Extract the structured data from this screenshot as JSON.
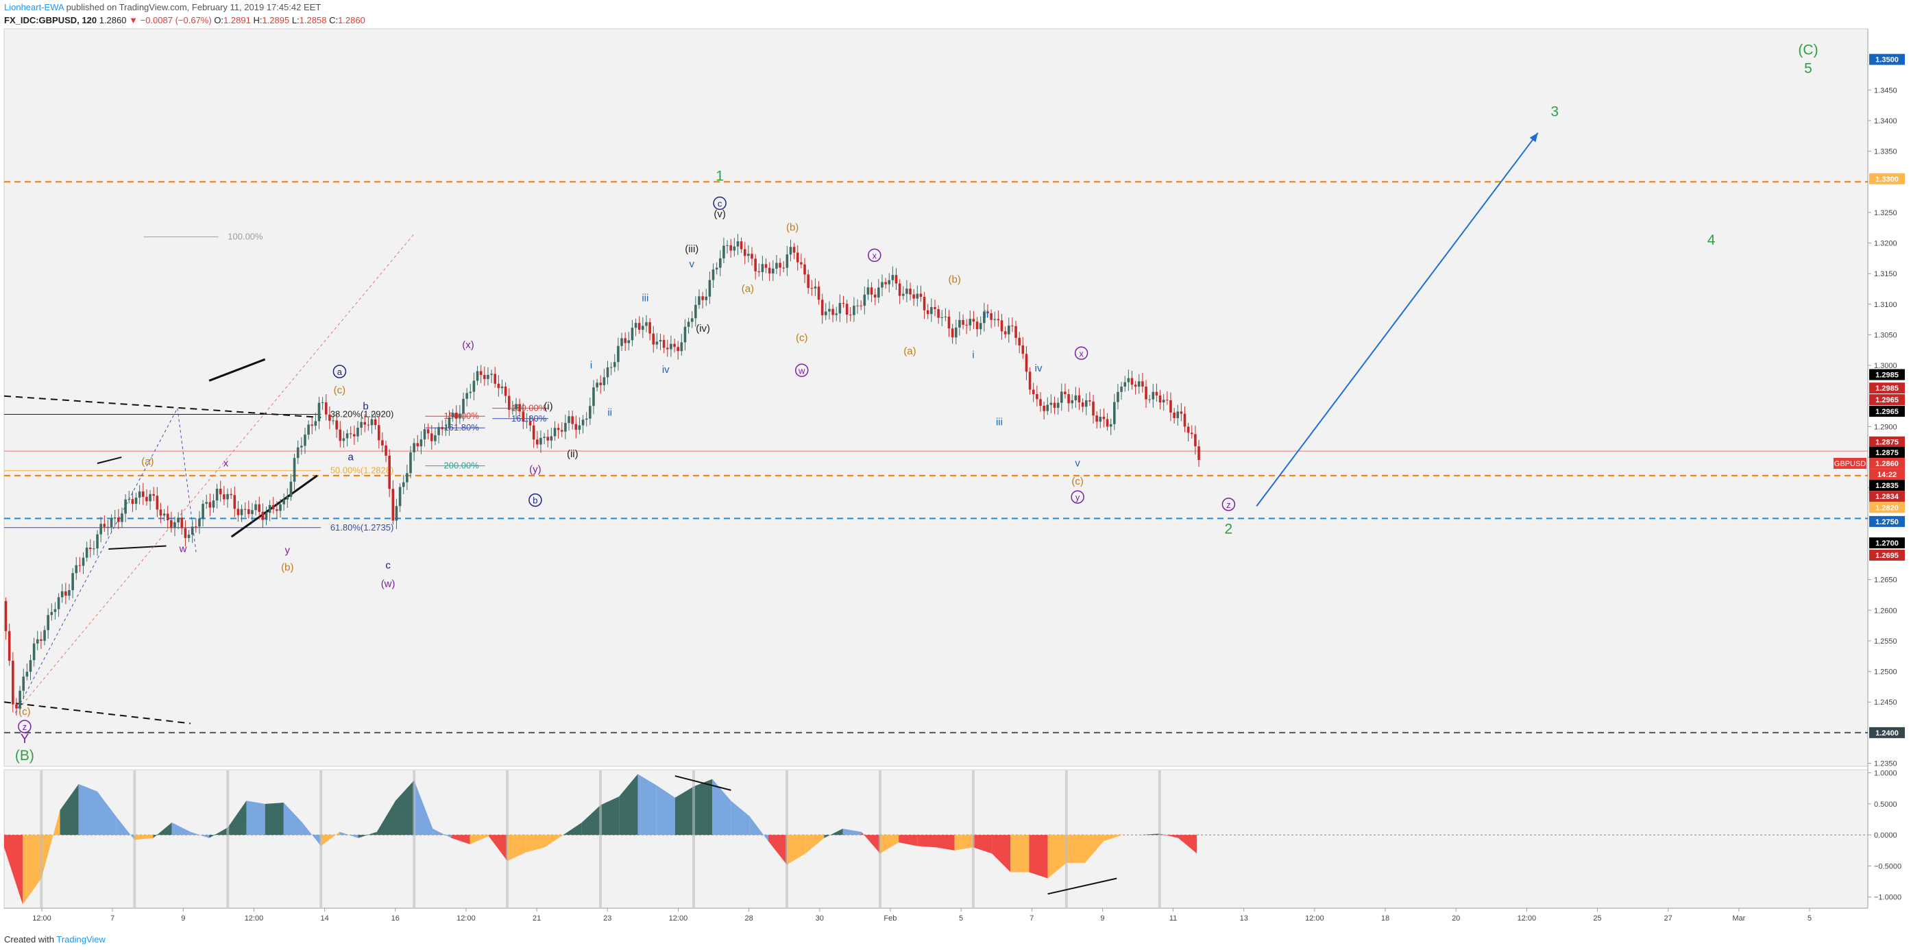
{
  "header": {
    "author": "Lionheart-EWA",
    "published": "published on TradingView.com, February 11, 2019 17:45:42 EET",
    "symbol": "FX_IDC:GBPUSD, 120",
    "last": "1.2860",
    "change": "−0.0087 (−0.67%)",
    "open_label": "O:",
    "open": "1.2891",
    "high_label": "H:",
    "high": "1.2895",
    "low_label": "L:",
    "low": "1.2858",
    "close_label": "C:",
    "close": "1.2860"
  },
  "footer": {
    "created": "Created with",
    "brand": "TradingView"
  },
  "colors": {
    "up": "#3d6b63",
    "down": "#c62828",
    "bg": "#f2f2f2",
    "green": "#2ea043",
    "blue": "#1565c0",
    "purple": "#7b1fa2",
    "orange": "#c07a16",
    "navy": "#1a237e",
    "osc_up_strong": "#3d6b63",
    "osc_up_weak": "#7aa7e0",
    "osc_down_strong": "#f04747",
    "osc_down_weak": "#ffb74d"
  },
  "chart_data": [
    {
      "type": "candlestick",
      "symbol": "GBPUSD",
      "timeframe": "120",
      "ylim": [
        1.2345,
        1.355
      ],
      "y_ticks": [
        "1.3450",
        "1.3400",
        "1.3350",
        "1.3250",
        "1.3200",
        "1.3150",
        "1.3100",
        "1.3050",
        "1.3000",
        "1.2900",
        "1.2850",
        "1.2800",
        "1.2650",
        "1.2600",
        "1.2550",
        "1.2500",
        "1.2450",
        "1.2350"
      ],
      "x_ticks": [
        "12:00",
        "7",
        "9",
        "12:00",
        "14",
        "16",
        "12:00",
        "21",
        "23",
        "12:00",
        "28",
        "30",
        "Feb",
        "5",
        "7",
        "9",
        "11",
        "13",
        "12:00",
        "18",
        "20",
        "12:00",
        "25",
        "27",
        "Mar",
        "5"
      ],
      "price_path": [
        [
          0,
          1.2615
        ],
        [
          0.006,
          1.244
        ],
        [
          0.02,
          1.256
        ],
        [
          0.05,
          1.272
        ],
        [
          0.075,
          1.2795
        ],
        [
          0.09,
          1.2745
        ],
        [
          0.1,
          1.2725
        ],
        [
          0.115,
          1.2795
        ],
        [
          0.13,
          1.276
        ],
        [
          0.15,
          1.2765
        ],
        [
          0.158,
          1.2855
        ],
        [
          0.17,
          1.2935
        ],
        [
          0.185,
          1.2875
        ],
        [
          0.195,
          1.2915
        ],
        [
          0.205,
          1.287
        ],
        [
          0.21,
          1.2745
        ],
        [
          0.22,
          1.287
        ],
        [
          0.24,
          1.2905
        ],
        [
          0.258,
          1.2995
        ],
        [
          0.275,
          1.293
        ],
        [
          0.29,
          1.287
        ],
        [
          0.3,
          1.2905
        ],
        [
          0.31,
          1.29
        ],
        [
          0.32,
          1.297
        ],
        [
          0.34,
          1.307
        ],
        [
          0.36,
          1.302
        ],
        [
          0.38,
          1.314
        ],
        [
          0.39,
          1.3205
        ],
        [
          0.41,
          1.315
        ],
        [
          0.425,
          1.3185
        ],
        [
          0.44,
          1.309
        ],
        [
          0.455,
          1.309
        ],
        [
          0.475,
          1.314
        ],
        [
          0.495,
          1.31
        ],
        [
          0.51,
          1.306
        ],
        [
          0.53,
          1.308
        ],
        [
          0.545,
          1.3045
        ],
        [
          0.555,
          1.293
        ],
        [
          0.575,
          1.295
        ],
        [
          0.595,
          1.29
        ],
        [
          0.6,
          1.298
        ],
        [
          0.615,
          1.2955
        ],
        [
          0.63,
          1.2925
        ],
        [
          0.642,
          1.286
        ]
      ],
      "horizontal_levels": [
        {
          "price": 1.33,
          "style": "dashed",
          "color": "#f57c00",
          "axis_label": "1.3300"
        },
        {
          "price": 1.24,
          "style": "dashed",
          "color": "#455a64",
          "axis_label": "1.2400"
        },
        {
          "price": 1.275,
          "style": "dashed",
          "color": "#1e88e5",
          "axis_label": "1.2750"
        },
        {
          "price": 1.282,
          "style": "dashed",
          "color": "#f57c00",
          "axis_label": "1.2820"
        },
        {
          "price": 1.286,
          "style": "solid",
          "color": "#e57373",
          "axis_label": "1.2860"
        }
      ],
      "fibonacci_levels": [
        {
          "label": "100.00%",
          "price": 1.321,
          "color": "#9e9e9e"
        },
        {
          "label": "38.20%(1.2920)",
          "price": 1.292,
          "color": "#212121"
        },
        {
          "label": "50.00%(1.2828)",
          "price": 1.2828,
          "color": "#f9a825"
        },
        {
          "label": "61.80%(1.2735)",
          "price": 1.2735,
          "color": "#3949ab"
        }
      ],
      "extension_levels": [
        {
          "label": "150.00%",
          "price": 1.2917,
          "color": "#e53935"
        },
        {
          "label": "161.80%",
          "price": 1.2898,
          "color": "#3949ab"
        },
        {
          "label": "200.00%",
          "price": 1.2836,
          "color": "#26a69a"
        },
        {
          "label": "150.00%",
          "price": 1.293,
          "color": "#e53935"
        },
        {
          "label": "161.80%",
          "price": 1.2913,
          "color": "#3949ab"
        }
      ],
      "axis_badges": [
        {
          "label": "1.3500",
          "price": 1.35,
          "bg": "#1565c0"
        },
        {
          "label": "1.3300",
          "price": 1.3305,
          "bg": "#ffb74d"
        },
        {
          "label": "1.2985",
          "price": 1.2985,
          "bg": "#000000"
        },
        {
          "label": "1.2985",
          "price": 1.2963,
          "bg": "#c62828"
        },
        {
          "label": "1.2965",
          "price": 1.2944,
          "bg": "#c62828"
        },
        {
          "label": "1.2965",
          "price": 1.2925,
          "bg": "#000000"
        },
        {
          "label": "1.2875",
          "price": 1.2875,
          "bg": "#c62828"
        },
        {
          "label": "1.2875",
          "price": 1.2858,
          "bg": "#000000"
        },
        {
          "label": "1.2860",
          "price": 1.284,
          "bg": "#e53935"
        },
        {
          "label": "14:22",
          "price": 1.2822,
          "bg": "#e53935"
        },
        {
          "label": "1.2835",
          "price": 1.2804,
          "bg": "#000000"
        },
        {
          "label": "1.2834",
          "price": 1.2786,
          "bg": "#c62828"
        },
        {
          "label": "1.2820",
          "price": 1.2768,
          "bg": "#ffb74d"
        },
        {
          "label": "1.2750",
          "price": 1.2745,
          "bg": "#1565c0"
        },
        {
          "label": "1.2700",
          "price": 1.271,
          "bg": "#000000"
        },
        {
          "label": "1.2695",
          "price": 1.269,
          "bg": "#c62828"
        },
        {
          "label": "1.2400",
          "price": 1.24,
          "bg": "#37474f"
        }
      ],
      "symbol_badge": "GBPUSD",
      "wave_labels": [
        {
          "text": "(C)",
          "t": 0.968,
          "price": 1.3508,
          "color": "#2ea043",
          "size": 21
        },
        {
          "text": "5",
          "t": 0.968,
          "price": 1.3478,
          "color": "#2ea043",
          "size": 21
        },
        {
          "text": "3",
          "t": 0.832,
          "price": 1.3407,
          "color": "#2ea043",
          "size": 21
        },
        {
          "text": "4",
          "t": 0.916,
          "price": 1.3197,
          "color": "#2ea043",
          "size": 21
        },
        {
          "text": "2",
          "t": 0.657,
          "price": 1.2725,
          "color": "#2ea043",
          "size": 21
        },
        {
          "text": "1",
          "t": 0.384,
          "price": 1.3302,
          "color": "#2ea043",
          "size": 21
        },
        {
          "text": "(B)",
          "t": 0.011,
          "price": 1.2355,
          "color": "#2ea043",
          "size": 21
        },
        {
          "text": "Y",
          "t": 0.011,
          "price": 1.2383,
          "color": "#7b1fa2",
          "size": 19
        },
        {
          "text": "(c)",
          "t": 0.011,
          "price": 1.2429,
          "color": "#c07a16",
          "size": 15
        },
        {
          "text": "(a)",
          "t": 0.077,
          "price": 1.2838,
          "color": "#c07a16",
          "size": 15
        },
        {
          "text": "x",
          "t": 0.119,
          "price": 1.2835,
          "color": "#7b1fa2",
          "size": 15
        },
        {
          "text": "w",
          "t": 0.096,
          "price": 1.2695,
          "color": "#7b1fa2",
          "size": 15
        },
        {
          "text": "y",
          "t": 0.152,
          "price": 1.2693,
          "color": "#7b1fa2",
          "size": 15
        },
        {
          "text": "(b)",
          "t": 0.152,
          "price": 1.2665,
          "color": "#c07a16",
          "size": 15
        },
        {
          "text": "(c)",
          "t": 0.18,
          "price": 1.2954,
          "color": "#c07a16",
          "size": 15
        },
        {
          "text": "b",
          "t": 0.194,
          "price": 1.2928,
          "color": "#1a237e",
          "size": 15
        },
        {
          "text": "a",
          "t": 0.186,
          "price": 1.2845,
          "color": "#1a237e",
          "size": 15
        },
        {
          "text": "c",
          "t": 0.206,
          "price": 1.2668,
          "color": "#1a237e",
          "size": 15
        },
        {
          "text": "(w)",
          "t": 0.206,
          "price": 1.2638,
          "color": "#7b1fa2",
          "size": 15
        },
        {
          "text": "(x)",
          "t": 0.249,
          "price": 1.3028,
          "color": "#7b1fa2",
          "size": 15
        },
        {
          "text": "(i)",
          "t": 0.292,
          "price": 1.2928,
          "color": "#212121",
          "size": 15
        },
        {
          "text": "(ii)",
          "t": 0.305,
          "price": 1.285,
          "color": "#212121",
          "size": 15
        },
        {
          "text": "(y)",
          "t": 0.285,
          "price": 1.2825,
          "color": "#7b1fa2",
          "size": 15
        },
        {
          "text": "i",
          "t": 0.315,
          "price": 1.2995,
          "color": "#1565c0",
          "size": 15
        },
        {
          "text": "ii",
          "t": 0.325,
          "price": 1.2918,
          "color": "#1565c0",
          "size": 15
        },
        {
          "text": "iii",
          "t": 0.344,
          "price": 1.3105,
          "color": "#1565c0",
          "size": 15
        },
        {
          "text": "iv",
          "t": 0.355,
          "price": 1.2988,
          "color": "#1565c0",
          "size": 15
        },
        {
          "text": "v",
          "t": 0.369,
          "price": 1.316,
          "color": "#1565c0",
          "size": 15
        },
        {
          "text": "(iii)",
          "t": 0.369,
          "price": 1.3185,
          "color": "#212121",
          "size": 15
        },
        {
          "text": "(iv)",
          "t": 0.375,
          "price": 1.3055,
          "color": "#212121",
          "size": 15
        },
        {
          "text": "(v)",
          "t": 0.384,
          "price": 1.3242,
          "color": "#212121",
          "size": 15
        },
        {
          "text": "(a)",
          "t": 0.399,
          "price": 1.312,
          "color": "#c07a16",
          "size": 15
        },
        {
          "text": "(b)",
          "t": 0.423,
          "price": 1.322,
          "color": "#c07a16",
          "size": 15
        },
        {
          "text": "(c)",
          "t": 0.428,
          "price": 1.304,
          "color": "#c07a16",
          "size": 15
        },
        {
          "text": "(a)",
          "t": 0.486,
          "price": 1.3018,
          "color": "#c07a16",
          "size": 15
        },
        {
          "text": "(b)",
          "t": 0.51,
          "price": 1.3135,
          "color": "#c07a16",
          "size": 15
        },
        {
          "text": "i",
          "t": 0.52,
          "price": 1.3012,
          "color": "#1565c0",
          "size": 15
        },
        {
          "text": "ii",
          "t": 0.527,
          "price": 1.3078,
          "color": "#1565c0",
          "size": 15
        },
        {
          "text": "iii",
          "t": 0.534,
          "price": 1.2902,
          "color": "#1565c0",
          "size": 15
        },
        {
          "text": "iv",
          "t": 0.555,
          "price": 1.299,
          "color": "#1565c0",
          "size": 15
        },
        {
          "text": "v",
          "t": 0.576,
          "price": 1.2835,
          "color": "#1565c0",
          "size": 15
        },
        {
          "text": "(c)",
          "t": 0.576,
          "price": 1.2805,
          "color": "#c07a16",
          "size": 15
        }
      ],
      "circled_labels": [
        {
          "text": "a",
          "t": 0.18,
          "price": 1.299,
          "color": "#1a237e"
        },
        {
          "text": "b",
          "t": 0.285,
          "price": 1.278,
          "color": "#1a237e"
        },
        {
          "text": "c",
          "t": 0.384,
          "price": 1.3265,
          "color": "#1a237e"
        },
        {
          "text": "w",
          "t": 0.428,
          "price": 1.2992,
          "color": "#7b1fa2"
        },
        {
          "text": "x",
          "t": 0.467,
          "price": 1.318,
          "color": "#7b1fa2"
        },
        {
          "text": "x",
          "t": 0.578,
          "price": 1.302,
          "color": "#7b1fa2"
        },
        {
          "text": "y",
          "t": 0.576,
          "price": 1.2785,
          "color": "#7b1fa2"
        },
        {
          "text": "z",
          "t": 0.657,
          "price": 1.2773,
          "color": "#7b1fa2"
        },
        {
          "text": "z",
          "t": 0.011,
          "price": 1.241,
          "color": "#7b1fa2"
        }
      ],
      "forecast_arrow": {
        "from": [
          0.672,
          1.277
        ],
        "to": [
          0.823,
          1.338
        ],
        "color": "#1e6fd1"
      }
    },
    {
      "type": "area",
      "name": "oscillator",
      "ylim": [
        -1.18,
        1.05
      ],
      "y_ticks": [
        "1.0000",
        "0.5000",
        "0.0000",
        "−0.5000",
        "−1.0000"
      ],
      "x": [
        0,
        0.01,
        0.02,
        0.03,
        0.04,
        0.05,
        0.06,
        0.07,
        0.08,
        0.09,
        0.1,
        0.11,
        0.12,
        0.13,
        0.14,
        0.15,
        0.16,
        0.17,
        0.18,
        0.19,
        0.2,
        0.21,
        0.22,
        0.23,
        0.24,
        0.25,
        0.26,
        0.27,
        0.28,
        0.29,
        0.3,
        0.31,
        0.32,
        0.33,
        0.34,
        0.35,
        0.36,
        0.37,
        0.38,
        0.39,
        0.4,
        0.41,
        0.42,
        0.43,
        0.44,
        0.45,
        0.46,
        0.47,
        0.48,
        0.49,
        0.5,
        0.51,
        0.52,
        0.53,
        0.54,
        0.55,
        0.56,
        0.57,
        0.58,
        0.59,
        0.6,
        0.61,
        0.62,
        0.63,
        0.64
      ],
      "values": [
        -0.2,
        -1.12,
        -0.7,
        0.4,
        0.82,
        0.7,
        0.3,
        -0.08,
        -0.05,
        0.2,
        0.05,
        -0.05,
        0.12,
        0.55,
        0.5,
        0.52,
        0.2,
        -0.18,
        0.05,
        -0.05,
        0.05,
        0.55,
        0.88,
        0.1,
        -0.05,
        -0.15,
        -0.02,
        -0.42,
        -0.28,
        -0.2,
        0.0,
        0.2,
        0.48,
        0.62,
        0.98,
        0.8,
        0.6,
        0.78,
        0.9,
        0.55,
        0.3,
        -0.1,
        -0.48,
        -0.3,
        -0.05,
        0.1,
        0.05,
        -0.3,
        -0.12,
        -0.18,
        -0.2,
        -0.25,
        -0.2,
        -0.3,
        -0.6,
        -0.6,
        -0.7,
        -0.45,
        -0.45,
        -0.1,
        0.0,
        0.0,
        0.02,
        -0.05,
        -0.3
      ]
    }
  ]
}
